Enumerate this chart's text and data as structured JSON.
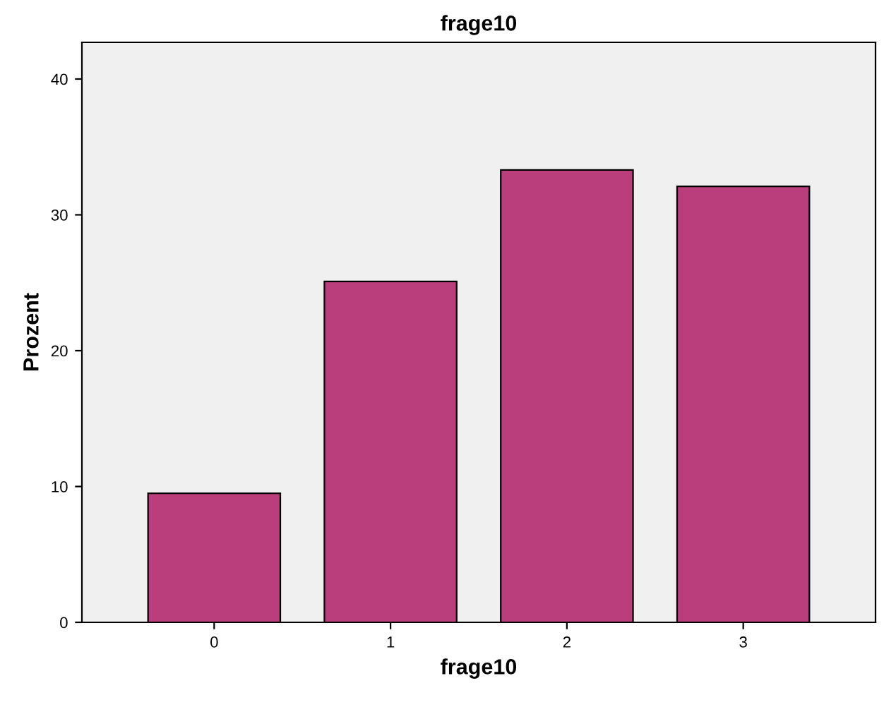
{
  "chart_data": {
    "type": "bar",
    "title": "frage10",
    "xlabel": "frage10",
    "ylabel": "Prozent",
    "categories": [
      "0",
      "1",
      "2",
      "3"
    ],
    "values": [
      9.5,
      25.1,
      33.3,
      32.1
    ],
    "color": "#bb3e7c",
    "ylim": [
      0,
      42.7
    ],
    "yticks": [
      0,
      10,
      20,
      30,
      40
    ],
    "grid": false
  }
}
